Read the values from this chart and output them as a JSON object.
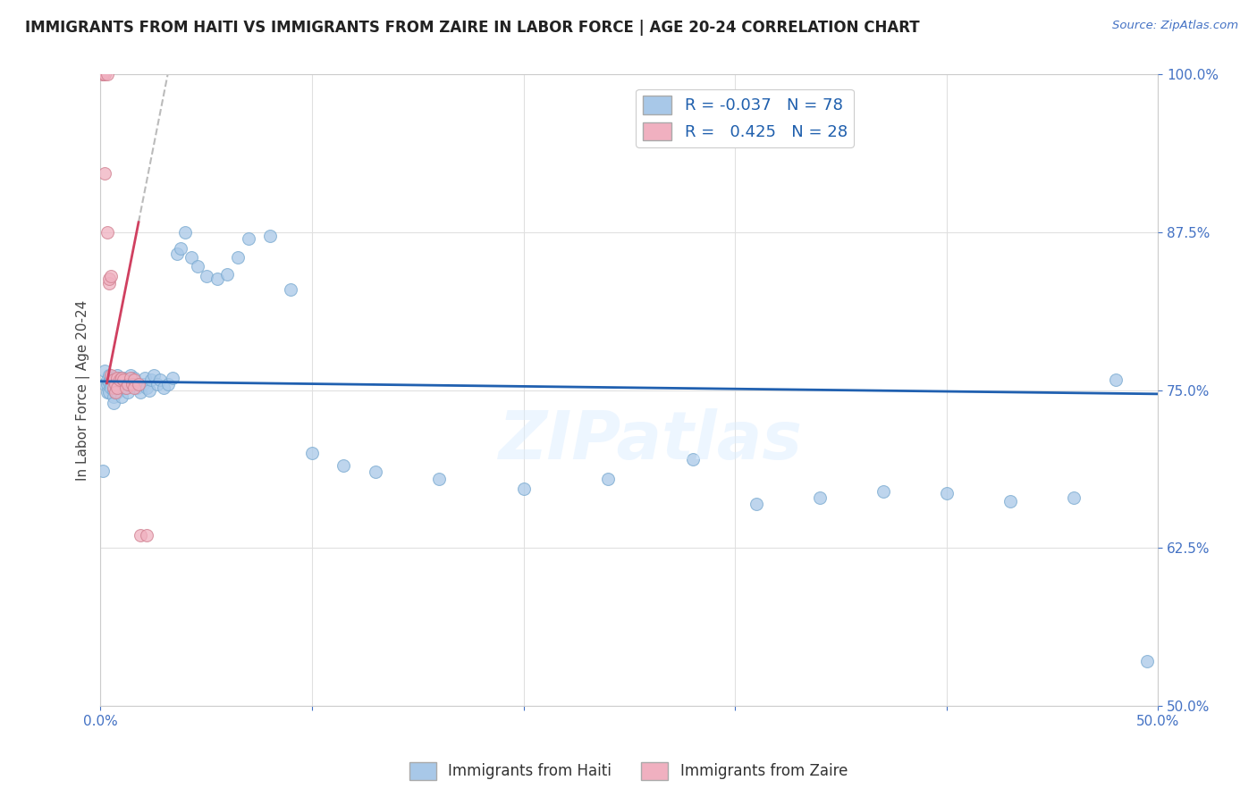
{
  "title": "IMMIGRANTS FROM HAITI VS IMMIGRANTS FROM ZAIRE IN LABOR FORCE | AGE 20-24 CORRELATION CHART",
  "source": "Source: ZipAtlas.com",
  "ylabel": "In Labor Force | Age 20-24",
  "xlim": [
    0.0,
    0.5
  ],
  "ylim": [
    0.5,
    1.0
  ],
  "xticks": [
    0.0,
    0.1,
    0.2,
    0.3,
    0.4,
    0.5
  ],
  "xticklabels": [
    "0.0%",
    "",
    "",
    "",
    "",
    "50.0%"
  ],
  "yticks": [
    0.5,
    0.625,
    0.75,
    0.875,
    1.0
  ],
  "yticklabels": [
    "50.0%",
    "62.5%",
    "75.0%",
    "87.5%",
    "100.0%"
  ],
  "haiti_color": "#A8C8E8",
  "haiti_edge_color": "#7AAAD0",
  "zaire_color": "#F0B0C0",
  "zaire_edge_color": "#D08090",
  "haiti_R": -0.037,
  "haiti_N": 78,
  "zaire_R": 0.425,
  "zaire_N": 28,
  "trend_haiti_color": "#2060B0",
  "trend_zaire_color": "#D04060",
  "trend_zaire_dash_color": "#BBBBBB",
  "watermark": "ZIPatlas",
  "haiti_x": [
    0.001,
    0.002,
    0.002,
    0.003,
    0.003,
    0.003,
    0.004,
    0.004,
    0.004,
    0.005,
    0.005,
    0.005,
    0.006,
    0.006,
    0.006,
    0.006,
    0.007,
    0.007,
    0.007,
    0.008,
    0.008,
    0.008,
    0.009,
    0.009,
    0.01,
    0.01,
    0.01,
    0.011,
    0.011,
    0.012,
    0.012,
    0.013,
    0.013,
    0.014,
    0.014,
    0.015,
    0.016,
    0.017,
    0.018,
    0.019,
    0.02,
    0.021,
    0.022,
    0.023,
    0.024,
    0.025,
    0.027,
    0.028,
    0.03,
    0.032,
    0.034,
    0.036,
    0.038,
    0.04,
    0.043,
    0.046,
    0.05,
    0.055,
    0.06,
    0.065,
    0.07,
    0.08,
    0.09,
    0.1,
    0.115,
    0.13,
    0.16,
    0.2,
    0.24,
    0.28,
    0.31,
    0.34,
    0.37,
    0.4,
    0.43,
    0.46,
    0.48,
    0.495
  ],
  "haiti_y": [
    0.686,
    0.755,
    0.765,
    0.755,
    0.748,
    0.758,
    0.762,
    0.748,
    0.756,
    0.756,
    0.76,
    0.752,
    0.758,
    0.75,
    0.745,
    0.74,
    0.76,
    0.755,
    0.748,
    0.762,
    0.755,
    0.748,
    0.76,
    0.752,
    0.758,
    0.752,
    0.745,
    0.76,
    0.752,
    0.758,
    0.752,
    0.755,
    0.748,
    0.762,
    0.755,
    0.758,
    0.76,
    0.752,
    0.755,
    0.748,
    0.755,
    0.76,
    0.752,
    0.75,
    0.758,
    0.762,
    0.755,
    0.758,
    0.752,
    0.755,
    0.76,
    0.858,
    0.862,
    0.875,
    0.855,
    0.848,
    0.84,
    0.838,
    0.842,
    0.855,
    0.87,
    0.872,
    0.83,
    0.7,
    0.69,
    0.685,
    0.68,
    0.672,
    0.68,
    0.695,
    0.66,
    0.665,
    0.67,
    0.668,
    0.662,
    0.665,
    0.758,
    0.535
  ],
  "zaire_x": [
    0.001,
    0.001,
    0.002,
    0.002,
    0.003,
    0.003,
    0.004,
    0.004,
    0.005,
    0.005,
    0.006,
    0.006,
    0.007,
    0.007,
    0.008,
    0.008,
    0.009,
    0.01,
    0.011,
    0.012,
    0.013,
    0.014,
    0.015,
    0.016,
    0.016,
    0.018,
    0.019,
    0.022
  ],
  "zaire_y": [
    1.0,
    1.0,
    1.0,
    0.922,
    1.0,
    0.875,
    0.835,
    0.838,
    0.84,
    0.762,
    0.758,
    0.752,
    0.755,
    0.748,
    0.76,
    0.752,
    0.758,
    0.76,
    0.758,
    0.752,
    0.755,
    0.76,
    0.755,
    0.758,
    0.752,
    0.755,
    0.635,
    0.635
  ]
}
